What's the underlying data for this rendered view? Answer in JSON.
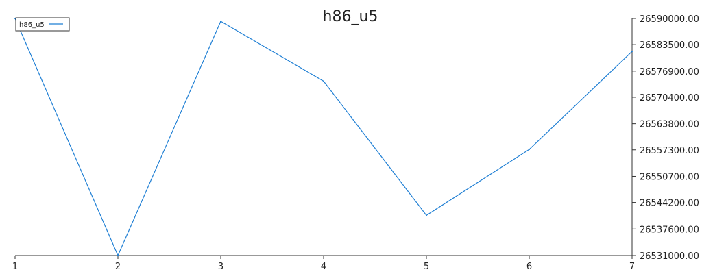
{
  "chart_data": {
    "type": "line",
    "title": "h86_u5",
    "xlabel": "",
    "ylabel": "",
    "x": [
      1,
      2,
      3,
      4,
      5,
      6,
      7
    ],
    "x_tick_labels": [
      "1",
      "2",
      "3",
      "4",
      "5",
      "6",
      "7"
    ],
    "y_tick_values": [
      26531000,
      26537600,
      26544200,
      26550700,
      26557300,
      26563800,
      26570400,
      26576900,
      26583500,
      26590000
    ],
    "y_tick_labels": [
      "26531000.00",
      "26537600.00",
      "26544200.00",
      "26550700.00",
      "26557300.00",
      "26563800.00",
      "26570400.00",
      "26576900.00",
      "26583500.00",
      "26590000.00"
    ],
    "ylim": [
      26531000,
      26590000
    ],
    "y_axis_side": "right",
    "grid": false,
    "legend_position": "top-left",
    "series": [
      {
        "name": "h86_u5",
        "color": "#1f7fd4",
        "values": [
          26590000,
          26531000,
          26589300,
          26574400,
          26541000,
          26557400,
          26581800
        ]
      }
    ]
  }
}
